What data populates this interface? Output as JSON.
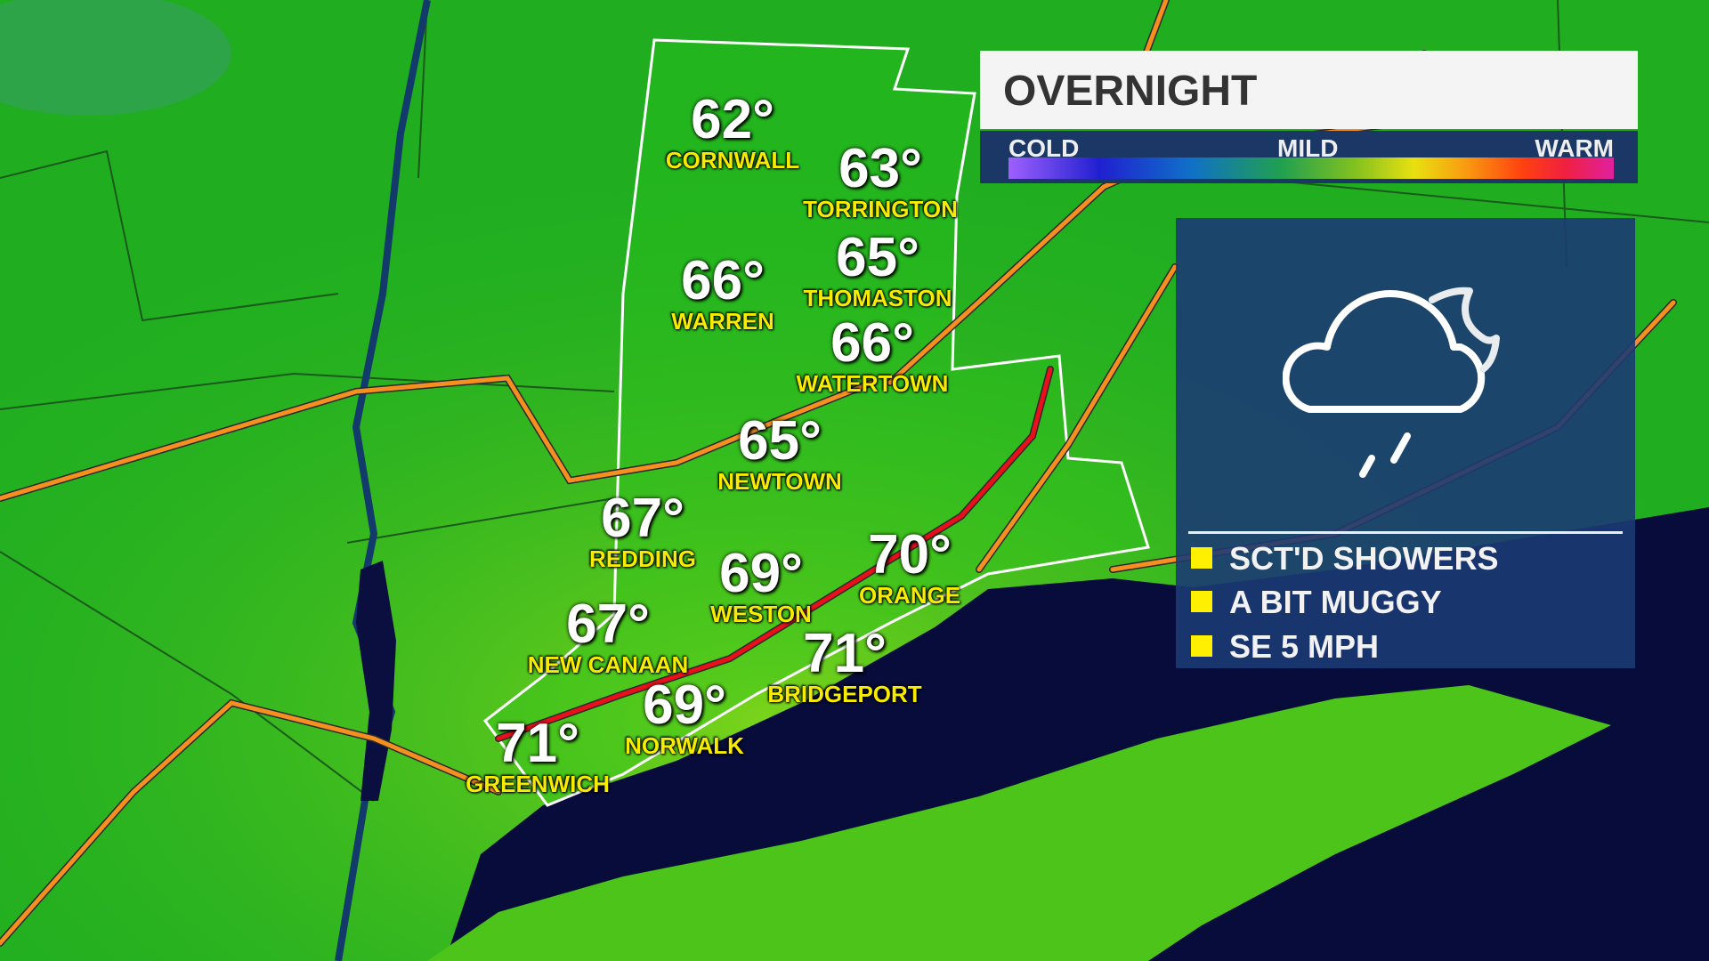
{
  "title": "OVERNIGHT",
  "scale": {
    "cold": "COLD",
    "mild": "MILD",
    "warm": "WARM",
    "colors": [
      "#a060ff",
      "#2020d0",
      "#1070c8",
      "#20a050",
      "#e8e010",
      "#ff4010",
      "#e020a0"
    ]
  },
  "cities": [
    {
      "name": "CORNWALL",
      "temp": "62°"
    },
    {
      "name": "TORRINGTON",
      "temp": "63°"
    },
    {
      "name": "WARREN",
      "temp": "66°"
    },
    {
      "name": "THOMASTON",
      "temp": "65°"
    },
    {
      "name": "WATERTOWN",
      "temp": "66°"
    },
    {
      "name": "NEWTOWN",
      "temp": "65°"
    },
    {
      "name": "REDDING",
      "temp": "67°"
    },
    {
      "name": "WESTON",
      "temp": "69°"
    },
    {
      "name": "ORANGE",
      "temp": "70°"
    },
    {
      "name": "NEW CANAAN",
      "temp": "67°"
    },
    {
      "name": "BRIDGEPORT",
      "temp": "71°"
    },
    {
      "name": "NORWALK",
      "temp": "69°"
    },
    {
      "name": "GREENWICH",
      "temp": "71°"
    }
  ],
  "conditions": {
    "icon": "cloud-moon-rain-icon",
    "items": [
      "SCT'D SHOWERS",
      "A BIT MUGGY",
      "SE 5 MPH"
    ],
    "bullet_color": "#ffef00"
  }
}
